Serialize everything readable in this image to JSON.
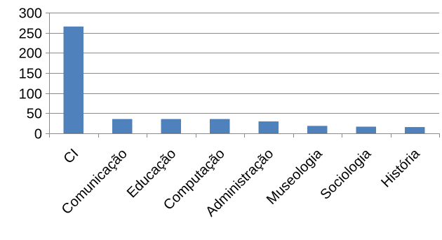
{
  "chart_data": {
    "type": "bar",
    "title": "",
    "xlabel": "",
    "ylabel": "",
    "categories": [
      "CI",
      "Comunicação",
      "Educação",
      "Computação",
      "Administração",
      "Museologia",
      "Sociologia",
      "História"
    ],
    "values": [
      265,
      35,
      35,
      35,
      29,
      18,
      16,
      15
    ],
    "ylim": [
      0,
      300
    ],
    "yticks": [
      0,
      50,
      100,
      150,
      200,
      250,
      300
    ],
    "grid": true,
    "legend": "none",
    "bar_color": "#4f81bd"
  }
}
